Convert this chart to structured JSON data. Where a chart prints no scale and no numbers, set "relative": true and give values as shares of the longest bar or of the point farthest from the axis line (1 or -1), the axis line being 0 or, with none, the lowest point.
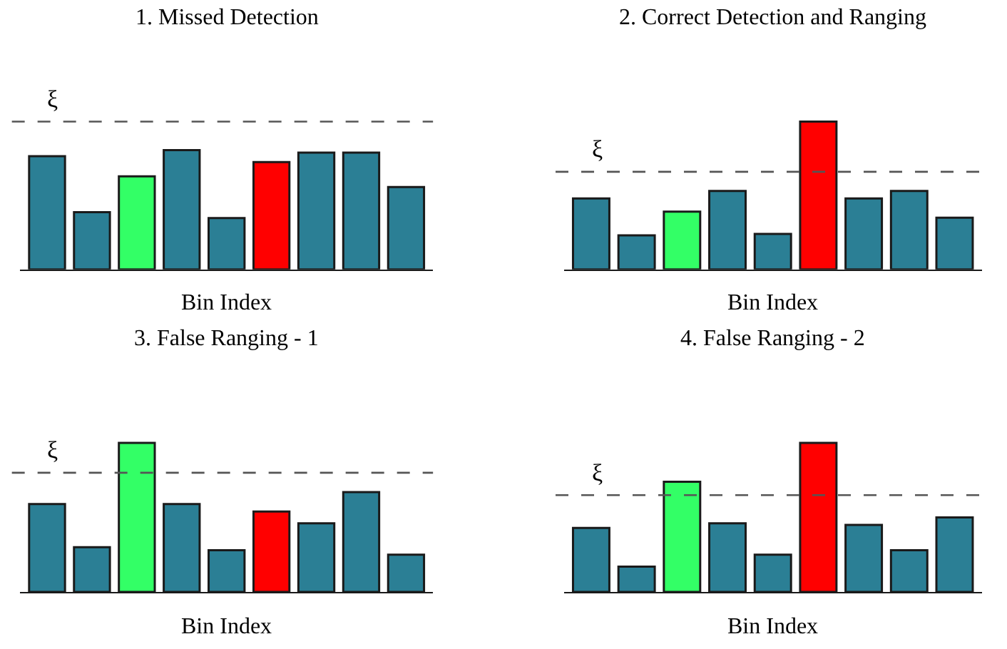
{
  "chart_data": [
    {
      "type": "bar",
      "title": "1. Missed Detection",
      "xlabel": "Bin Index",
      "relative": true,
      "categories": [
        null,
        null,
        null,
        null,
        null,
        null,
        null,
        null,
        null
      ],
      "values": [
        0.95,
        0.48,
        0.78,
        1,
        0.43,
        0.9,
        0.98,
        0.98,
        0.69
      ],
      "colors": [
        "#2b7f95",
        "#2b7f95",
        "#33ff66",
        "#2b7f95",
        "#2b7f95",
        "#ff0000",
        "#2b7f95",
        "#2b7f95",
        "#2b7f95"
      ],
      "ref_lines": [
        {
          "axis": "y",
          "value": 1.24,
          "label": "ξ",
          "line_style": "dashed",
          "color": "#555555"
        }
      ]
    },
    {
      "type": "bar",
      "title": "2. Correct Detection and Ranging",
      "xlabel": "Bin Index",
      "relative": true,
      "categories": [
        null,
        null,
        null,
        null,
        null,
        null,
        null,
        null,
        null
      ],
      "values": [
        0.48,
        0.23,
        0.39,
        0.53,
        0.24,
        1,
        0.48,
        0.53,
        0.35
      ],
      "colors": [
        "#2b7f95",
        "#2b7f95",
        "#33ff66",
        "#2b7f95",
        "#2b7f95",
        "#ff0000",
        "#2b7f95",
        "#2b7f95",
        "#2b7f95"
      ],
      "ref_lines": [
        {
          "axis": "y",
          "value": 0.66,
          "label": "ξ",
          "line_style": "dashed",
          "color": "#555555"
        }
      ]
    },
    {
      "type": "bar",
      "title": "3. False Ranging - 1",
      "xlabel": "Bin Index",
      "relative": true,
      "categories": [
        null,
        null,
        null,
        null,
        null,
        null,
        null,
        null,
        null
      ],
      "values": [
        0.59,
        0.3,
        1,
        0.59,
        0.28,
        0.54,
        0.46,
        0.67,
        0.25
      ],
      "colors": [
        "#2b7f95",
        "#2b7f95",
        "#33ff66",
        "#2b7f95",
        "#2b7f95",
        "#ff0000",
        "#2b7f95",
        "#2b7f95",
        "#2b7f95"
      ],
      "ref_lines": [
        {
          "axis": "y",
          "value": 0.8,
          "label": "ξ",
          "line_style": "dashed",
          "color": "#555555"
        }
      ]
    },
    {
      "type": "bar",
      "title": "4. False Ranging - 2",
      "xlabel": "Bin Index",
      "relative": true,
      "categories": [
        null,
        null,
        null,
        null,
        null,
        null,
        null,
        null,
        null
      ],
      "values": [
        0.43,
        0.17,
        0.74,
        0.46,
        0.25,
        1,
        0.45,
        0.28,
        0.5
      ],
      "colors": [
        "#2b7f95",
        "#2b7f95",
        "#33ff66",
        "#2b7f95",
        "#2b7f95",
        "#ff0000",
        "#2b7f95",
        "#2b7f95",
        "#2b7f95"
      ],
      "ref_lines": [
        {
          "axis": "y",
          "value": 0.65,
          "label": "ξ",
          "line_style": "dashed",
          "color": "#555555"
        }
      ]
    }
  ]
}
